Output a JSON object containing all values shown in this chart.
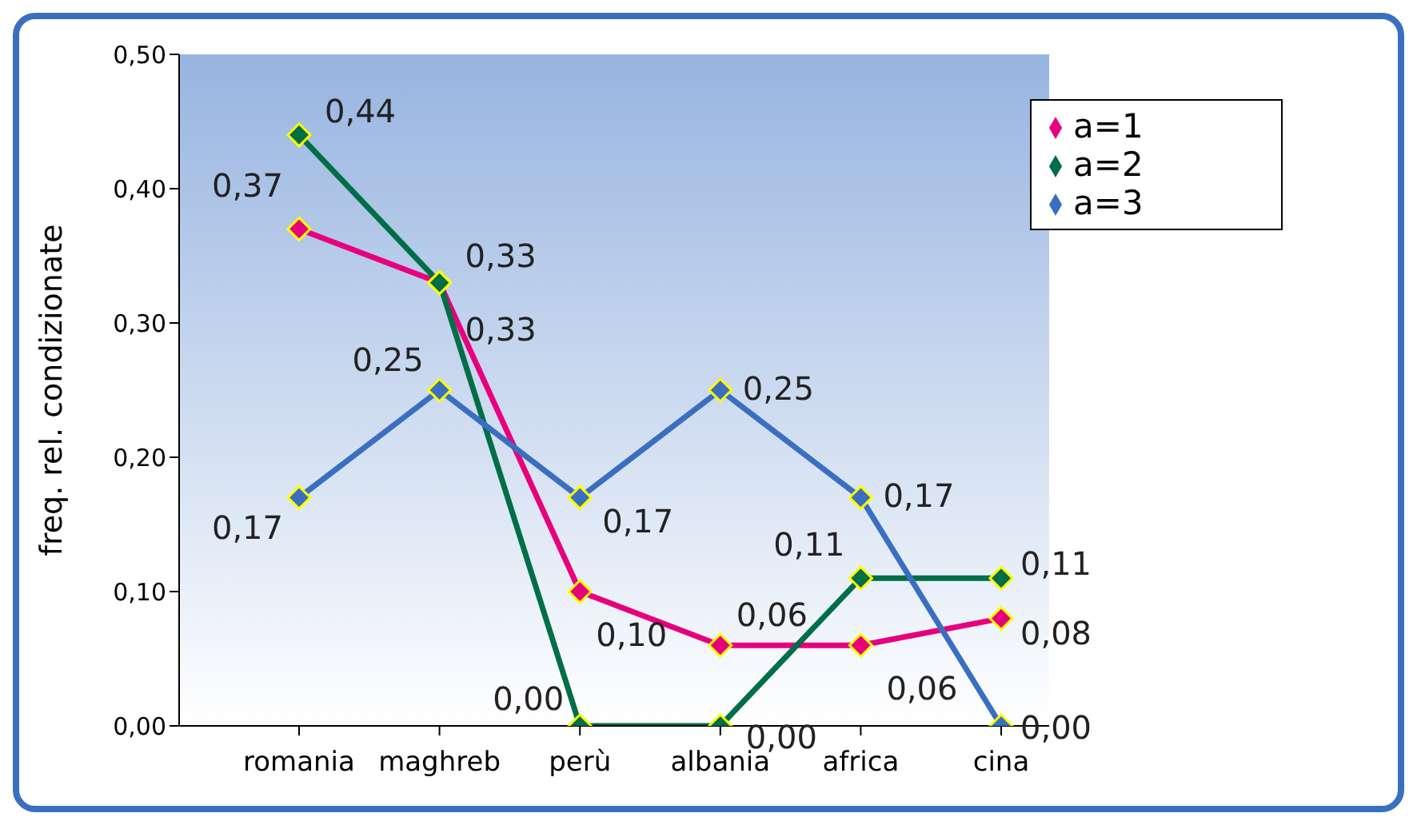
{
  "chart_data": {
    "type": "line",
    "ylabel": "freq. rel. condizionate",
    "categories": [
      "romania",
      "maghreb",
      "perù",
      "albania",
      "africa",
      "cina"
    ],
    "series": [
      {
        "name": "a=1",
        "color": "#e6007e",
        "values": [
          0.37,
          0.33,
          0.1,
          0.06,
          0.06,
          0.08
        ],
        "value_labels": [
          "0,37",
          "0,33",
          "0,10",
          "0,06",
          "0,06",
          "0,08"
        ]
      },
      {
        "name": "a=2",
        "color": "#006e46",
        "values": [
          0.44,
          0.33,
          0.0,
          0.0,
          0.11,
          0.11
        ],
        "value_labels": [
          "0,44",
          "0,33",
          "0,00",
          "0,00",
          "0,11",
          "0,11"
        ]
      },
      {
        "name": "a=3",
        "color": "#3a6fc0",
        "values": [
          0.17,
          0.25,
          0.17,
          0.25,
          0.17,
          0.0
        ],
        "value_labels": [
          "0,17",
          "0,25",
          "0,17",
          "0,25",
          "0,17",
          "0,00"
        ]
      }
    ],
    "ylim": [
      0,
      0.5
    ],
    "yticks": [
      {
        "value": 0,
        "label": "0,00"
      },
      {
        "value": 0.1,
        "label": "0,10"
      },
      {
        "value": 0.2,
        "label": "0,20"
      },
      {
        "value": 0.3,
        "label": "0,30"
      },
      {
        "value": 0.4,
        "label": "0,40"
      },
      {
        "value": 0.5,
        "label": "0,50"
      }
    ],
    "marker": "diamond",
    "legend": "top right",
    "grid": false
  }
}
